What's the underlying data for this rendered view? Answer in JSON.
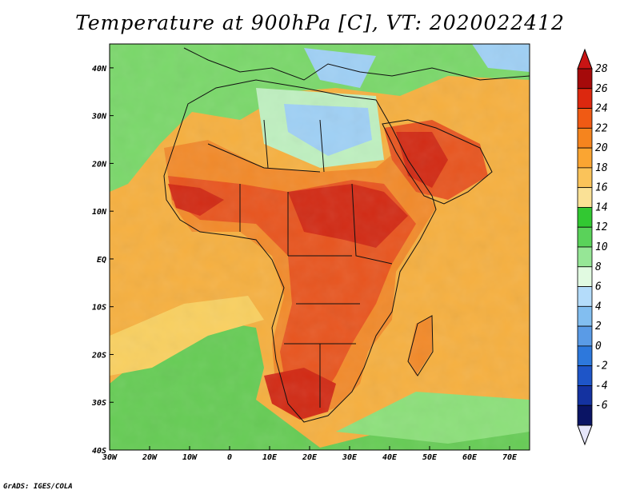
{
  "title": "Temperature at 900hPa [C], VT: 2020022412",
  "credit": "GrADS: IGES/COLA",
  "map": {
    "lon_range": [
      -30,
      75
    ],
    "lat_range": [
      -40,
      45
    ],
    "lon_ticks": [
      {
        "value": -30,
        "label": "30W"
      },
      {
        "value": -20,
        "label": "20W"
      },
      {
        "value": -10,
        "label": "10W"
      },
      {
        "value": 0,
        "label": "0"
      },
      {
        "value": 10,
        "label": "10E"
      },
      {
        "value": 20,
        "label": "20E"
      },
      {
        "value": 30,
        "label": "30E"
      },
      {
        "value": 40,
        "label": "40E"
      },
      {
        "value": 50,
        "label": "50E"
      },
      {
        "value": 60,
        "label": "60E"
      },
      {
        "value": 70,
        "label": "70E"
      }
    ],
    "lat_ticks": [
      {
        "value": 40,
        "label": "40N"
      },
      {
        "value": 30,
        "label": "30N"
      },
      {
        "value": 20,
        "label": "20N"
      },
      {
        "value": 10,
        "label": "10N"
      },
      {
        "value": 0,
        "label": "EQ"
      },
      {
        "value": -10,
        "label": "10S"
      },
      {
        "value": -20,
        "label": "20S"
      },
      {
        "value": -30,
        "label": "30S"
      },
      {
        "value": -40,
        "label": "40S"
      }
    ],
    "colors": {
      "ocean_warm": "#f6b040",
      "ocean_mild": "#f9d060",
      "ocean_cool": "#8ce07a",
      "ocean_cold": "#66cc55",
      "land_hot": "#e8551f",
      "land_hotter": "#d22a14",
      "land_warm": "#f28a2a",
      "land_green": "#7ad86a",
      "land_pale": "#bff0c0",
      "land_cold": "#9fd0f5",
      "border": "#111111"
    }
  },
  "colorbar": {
    "labels": [
      "28",
      "26",
      "24",
      "22",
      "20",
      "18",
      "16",
      "14",
      "12",
      "10",
      "8",
      "6",
      "4",
      "2",
      "0",
      "-2",
      "-4",
      "-6"
    ],
    "colors": [
      "#a50a0a",
      "#dc280f",
      "#f05a14",
      "#f5841e",
      "#faa532",
      "#fac35a",
      "#fae196",
      "#32c832",
      "#5ad25a",
      "#96e696",
      "#e1fae1",
      "#b4dcfa",
      "#82bef0",
      "#5a9be6",
      "#2d78dc",
      "#1e55c8",
      "#1432a0",
      "#0a1464"
    ],
    "top_color": "#c81414",
    "bottom_color": "#e6e6fa"
  }
}
